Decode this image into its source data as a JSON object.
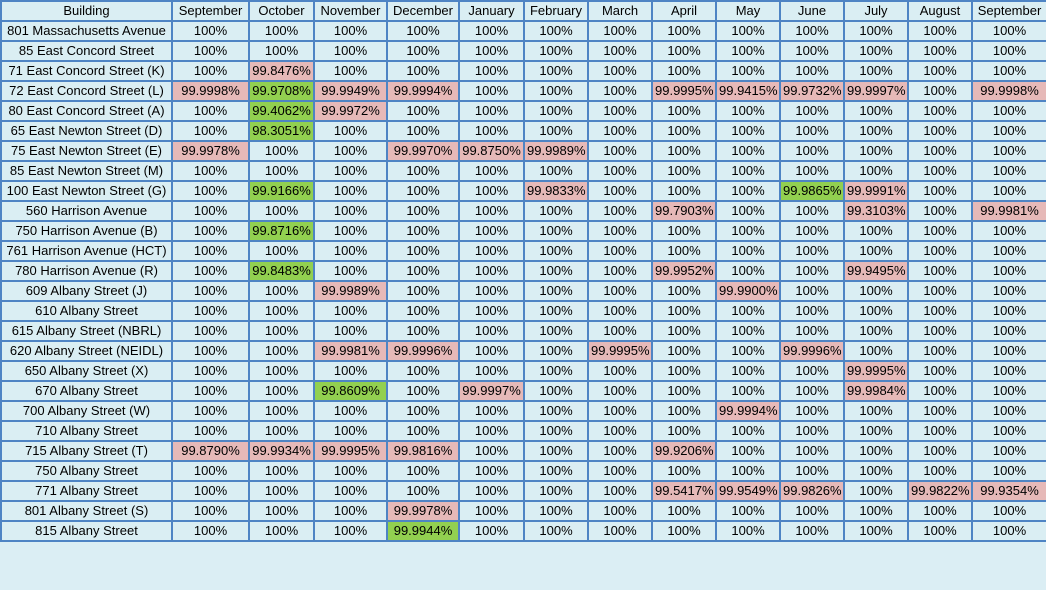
{
  "headers": [
    "Building",
    "September",
    "October",
    "November",
    "December",
    "January",
    "February",
    "March",
    "April",
    "May",
    "June",
    "July",
    "August",
    "September"
  ],
  "rows": [
    {
      "building": "801 Massachusetts Avenue",
      "values": [
        "100%",
        "100%",
        "100%",
        "100%",
        "100%",
        "100%",
        "100%",
        "100%",
        "100%",
        "100%",
        "100%",
        "100%",
        "100%"
      ],
      "status": [
        "",
        "",
        "",
        "",
        "",
        "",
        "",
        "",
        "",
        "",
        "",
        "",
        ""
      ]
    },
    {
      "building": "85 East Concord Street",
      "values": [
        "100%",
        "100%",
        "100%",
        "100%",
        "100%",
        "100%",
        "100%",
        "100%",
        "100%",
        "100%",
        "100%",
        "100%",
        "100%"
      ],
      "status": [
        "",
        "",
        "",
        "",
        "",
        "",
        "",
        "",
        "",
        "",
        "",
        "",
        ""
      ]
    },
    {
      "building": "71 East Concord Street (K)",
      "values": [
        "100%",
        "99.8476%",
        "100%",
        "100%",
        "100%",
        "100%",
        "100%",
        "100%",
        "100%",
        "100%",
        "100%",
        "100%",
        "100%"
      ],
      "status": [
        "",
        "pink",
        "",
        "",
        "",
        "",
        "",
        "",
        "",
        "",
        "",
        "",
        ""
      ]
    },
    {
      "building": "72 East Concord Street (L)",
      "values": [
        "99.9998%",
        "99.9708%",
        "99.9949%",
        "99.9994%",
        "100%",
        "100%",
        "100%",
        "99.9995%",
        "99.9415%",
        "99.9732%",
        "99.9997%",
        "100%",
        "99.9998%"
      ],
      "status": [
        "pink",
        "green",
        "pink",
        "pink",
        "",
        "",
        "",
        "pink",
        "pink",
        "pink",
        "pink",
        "",
        "pink"
      ]
    },
    {
      "building": "80 East Concord Street (A)",
      "values": [
        "100%",
        "99.4062%",
        "99.9972%",
        "100%",
        "100%",
        "100%",
        "100%",
        "100%",
        "100%",
        "100%",
        "100%",
        "100%",
        "100%"
      ],
      "status": [
        "",
        "green",
        "pink",
        "",
        "",
        "",
        "",
        "",
        "",
        "",
        "",
        "",
        ""
      ]
    },
    {
      "building": "65 East Newton Street (D)",
      "values": [
        "100%",
        "98.3051%",
        "100%",
        "100%",
        "100%",
        "100%",
        "100%",
        "100%",
        "100%",
        "100%",
        "100%",
        "100%",
        "100%"
      ],
      "status": [
        "",
        "green",
        "",
        "",
        "",
        "",
        "",
        "",
        "",
        "",
        "",
        "",
        ""
      ]
    },
    {
      "building": "75 East Newton Street (E)",
      "values": [
        "99.9978%",
        "100%",
        "100%",
        "99.9970%",
        "99.8750%",
        "99.9989%",
        "100%",
        "100%",
        "100%",
        "100%",
        "100%",
        "100%",
        "100%"
      ],
      "status": [
        "pink",
        "",
        "",
        "pink",
        "pink",
        "pink",
        "",
        "",
        "",
        "",
        "",
        "",
        ""
      ]
    },
    {
      "building": "85 East Newton Street (M)",
      "values": [
        "100%",
        "100%",
        "100%",
        "100%",
        "100%",
        "100%",
        "100%",
        "100%",
        "100%",
        "100%",
        "100%",
        "100%",
        "100%"
      ],
      "status": [
        "",
        "",
        "",
        "",
        "",
        "",
        "",
        "",
        "",
        "",
        "",
        "",
        ""
      ]
    },
    {
      "building": "100 East Newton Street (G)",
      "values": [
        "100%",
        "99.9166%",
        "100%",
        "100%",
        "100%",
        "99.9833%",
        "100%",
        "100%",
        "100%",
        "99.9865%",
        "99.9991%",
        "100%",
        "100%"
      ],
      "status": [
        "",
        "green",
        "",
        "",
        "",
        "pink",
        "",
        "",
        "",
        "green",
        "pink",
        "",
        ""
      ]
    },
    {
      "building": "560 Harrison Avenue",
      "values": [
        "100%",
        "100%",
        "100%",
        "100%",
        "100%",
        "100%",
        "100%",
        "99.7903%",
        "100%",
        "100%",
        "99.3103%",
        "100%",
        "99.9981%"
      ],
      "status": [
        "",
        "",
        "",
        "",
        "",
        "",
        "",
        "pink",
        "",
        "",
        "pink",
        "",
        "pink"
      ]
    },
    {
      "building": "750 Harrison Avenue (B)",
      "values": [
        "100%",
        "99.8716%",
        "100%",
        "100%",
        "100%",
        "100%",
        "100%",
        "100%",
        "100%",
        "100%",
        "100%",
        "100%",
        "100%"
      ],
      "status": [
        "",
        "green",
        "",
        "",
        "",
        "",
        "",
        "",
        "",
        "",
        "",
        "",
        ""
      ]
    },
    {
      "building": "761 Harrison Avenue (HCT)",
      "values": [
        "100%",
        "100%",
        "100%",
        "100%",
        "100%",
        "100%",
        "100%",
        "100%",
        "100%",
        "100%",
        "100%",
        "100%",
        "100%"
      ],
      "status": [
        "",
        "",
        "",
        "",
        "",
        "",
        "",
        "",
        "",
        "",
        "",
        "",
        ""
      ]
    },
    {
      "building": "780 Harrison Avenue (R)",
      "values": [
        "100%",
        "99.8483%",
        "100%",
        "100%",
        "100%",
        "100%",
        "100%",
        "99.9952%",
        "100%",
        "100%",
        "99.9495%",
        "100%",
        "100%"
      ],
      "status": [
        "",
        "green",
        "",
        "",
        "",
        "",
        "",
        "pink",
        "",
        "",
        "pink",
        "",
        ""
      ]
    },
    {
      "building": "609 Albany Street (J)",
      "values": [
        "100%",
        "100%",
        "99.9989%",
        "100%",
        "100%",
        "100%",
        "100%",
        "100%",
        "99.9900%",
        "100%",
        "100%",
        "100%",
        "100%"
      ],
      "status": [
        "",
        "",
        "pink",
        "",
        "",
        "",
        "",
        "",
        "pink",
        "",
        "",
        "",
        ""
      ]
    },
    {
      "building": "610 Albany Street",
      "values": [
        "100%",
        "100%",
        "100%",
        "100%",
        "100%",
        "100%",
        "100%",
        "100%",
        "100%",
        "100%",
        "100%",
        "100%",
        "100%"
      ],
      "status": [
        "",
        "",
        "",
        "",
        "",
        "",
        "",
        "",
        "",
        "",
        "",
        "",
        ""
      ]
    },
    {
      "building": "615 Albany Street (NBRL)",
      "values": [
        "100%",
        "100%",
        "100%",
        "100%",
        "100%",
        "100%",
        "100%",
        "100%",
        "100%",
        "100%",
        "100%",
        "100%",
        "100%"
      ],
      "status": [
        "",
        "",
        "",
        "",
        "",
        "",
        "",
        "",
        "",
        "",
        "",
        "",
        ""
      ]
    },
    {
      "building": "620 Albany Street (NEIDL)",
      "values": [
        "100%",
        "100%",
        "99.9981%",
        "99.9996%",
        "100%",
        "100%",
        "99.9995%",
        "100%",
        "100%",
        "99.9996%",
        "100%",
        "100%",
        "100%"
      ],
      "status": [
        "",
        "",
        "pink",
        "pink",
        "",
        "",
        "pink",
        "",
        "",
        "pink",
        "",
        "",
        ""
      ]
    },
    {
      "building": "650 Albany Street (X)",
      "values": [
        "100%",
        "100%",
        "100%",
        "100%",
        "100%",
        "100%",
        "100%",
        "100%",
        "100%",
        "100%",
        "99.9995%",
        "100%",
        "100%"
      ],
      "status": [
        "",
        "",
        "",
        "",
        "",
        "",
        "",
        "",
        "",
        "",
        "pink",
        "",
        ""
      ]
    },
    {
      "building": "670 Albany Street",
      "values": [
        "100%",
        "100%",
        "99.8609%",
        "100%",
        "99.9997%",
        "100%",
        "100%",
        "100%",
        "100%",
        "100%",
        "99.9984%",
        "100%",
        "100%"
      ],
      "status": [
        "",
        "",
        "green",
        "",
        "pink",
        "",
        "",
        "",
        "",
        "",
        "pink",
        "",
        ""
      ]
    },
    {
      "building": "700 Albany Street (W)",
      "values": [
        "100%",
        "100%",
        "100%",
        "100%",
        "100%",
        "100%",
        "100%",
        "100%",
        "99.9994%",
        "100%",
        "100%",
        "100%",
        "100%"
      ],
      "status": [
        "",
        "",
        "",
        "",
        "",
        "",
        "",
        "",
        "pink",
        "",
        "",
        "",
        ""
      ]
    },
    {
      "building": "710 Albany Street",
      "values": [
        "100%",
        "100%",
        "100%",
        "100%",
        "100%",
        "100%",
        "100%",
        "100%",
        "100%",
        "100%",
        "100%",
        "100%",
        "100%"
      ],
      "status": [
        "",
        "",
        "",
        "",
        "",
        "",
        "",
        "",
        "",
        "",
        "",
        "",
        ""
      ]
    },
    {
      "building": "715 Albany Street (T)",
      "values": [
        "99.8790%",
        "99.9934%",
        "99.9995%",
        "99.9816%",
        "100%",
        "100%",
        "100%",
        "99.9206%",
        "100%",
        "100%",
        "100%",
        "100%",
        "100%"
      ],
      "status": [
        "pink",
        "pink",
        "pink",
        "pink",
        "",
        "",
        "",
        "pink",
        "",
        "",
        "",
        "",
        ""
      ]
    },
    {
      "building": "750 Albany Street",
      "values": [
        "100%",
        "100%",
        "100%",
        "100%",
        "100%",
        "100%",
        "100%",
        "100%",
        "100%",
        "100%",
        "100%",
        "100%",
        "100%"
      ],
      "status": [
        "",
        "",
        "",
        "",
        "",
        "",
        "",
        "",
        "",
        "",
        "",
        "",
        ""
      ]
    },
    {
      "building": "771 Albany Street",
      "values": [
        "100%",
        "100%",
        "100%",
        "100%",
        "100%",
        "100%",
        "100%",
        "99.5417%",
        "99.9549%",
        "99.9826%",
        "100%",
        "99.9822%",
        "99.9354%"
      ],
      "status": [
        "",
        "",
        "",
        "",
        "",
        "",
        "",
        "pink",
        "pink",
        "pink",
        "",
        "pink",
        "pink"
      ]
    },
    {
      "building": "801 Albany Street (S)",
      "values": [
        "100%",
        "100%",
        "100%",
        "99.9978%",
        "100%",
        "100%",
        "100%",
        "100%",
        "100%",
        "100%",
        "100%",
        "100%",
        "100%"
      ],
      "status": [
        "",
        "",
        "",
        "pink",
        "",
        "",
        "",
        "",
        "",
        "",
        "",
        "",
        ""
      ]
    },
    {
      "building": "815 Albany Street",
      "values": [
        "100%",
        "100%",
        "100%",
        "99.9944%",
        "100%",
        "100%",
        "100%",
        "100%",
        "100%",
        "100%",
        "100%",
        "100%",
        "100%"
      ],
      "status": [
        "",
        "",
        "",
        "green",
        "",
        "",
        "",
        "",
        "",
        "",
        "",
        "",
        ""
      ]
    }
  ],
  "colors": {
    "cell": "#daeef3",
    "border": "#4e84c4",
    "pink": "#e6b9b8",
    "green": "#92d050"
  }
}
